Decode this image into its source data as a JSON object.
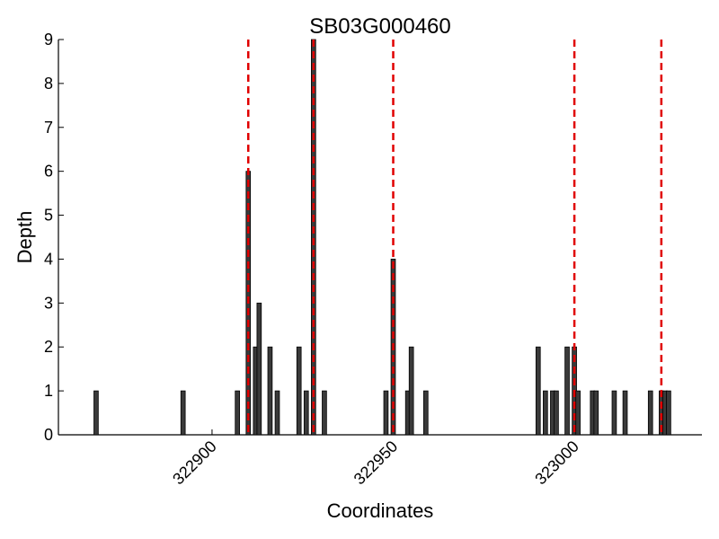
{
  "chart_data": {
    "type": "bar",
    "title": "SB03G000460",
    "xlabel": "Coordinates",
    "ylabel": "Depth",
    "x": [
      322868,
      322892,
      322907,
      322910,
      322912,
      322913,
      322916,
      322918,
      322924,
      322926,
      322928,
      322931,
      322948,
      322950,
      322954,
      322955,
      322959,
      322990,
      322992,
      322994,
      322995,
      322998,
      323000,
      323001,
      323005,
      323006,
      323011,
      323014,
      323021,
      323024,
      323025,
      323026
    ],
    "values": [
      1,
      1,
      1,
      6,
      2,
      3,
      2,
      1,
      2,
      1,
      9,
      1,
      1,
      4,
      1,
      2,
      1,
      2,
      1,
      1,
      1,
      2,
      2,
      1,
      1,
      1,
      1,
      1,
      1,
      1,
      1,
      1
    ],
    "color": "#3a3a3a",
    "xlim": [
      322857.6,
      323035.2
    ],
    "ylim": [
      0,
      9
    ],
    "xticks": [
      322900,
      322950,
      323000
    ],
    "yticks": [
      0,
      1,
      2,
      3,
      4,
      5,
      6,
      7,
      8,
      9
    ],
    "vlines": {
      "x": [
        322910,
        322928,
        322950,
        323000,
        323024
      ],
      "color": "#e00000",
      "style": "dashed"
    }
  }
}
